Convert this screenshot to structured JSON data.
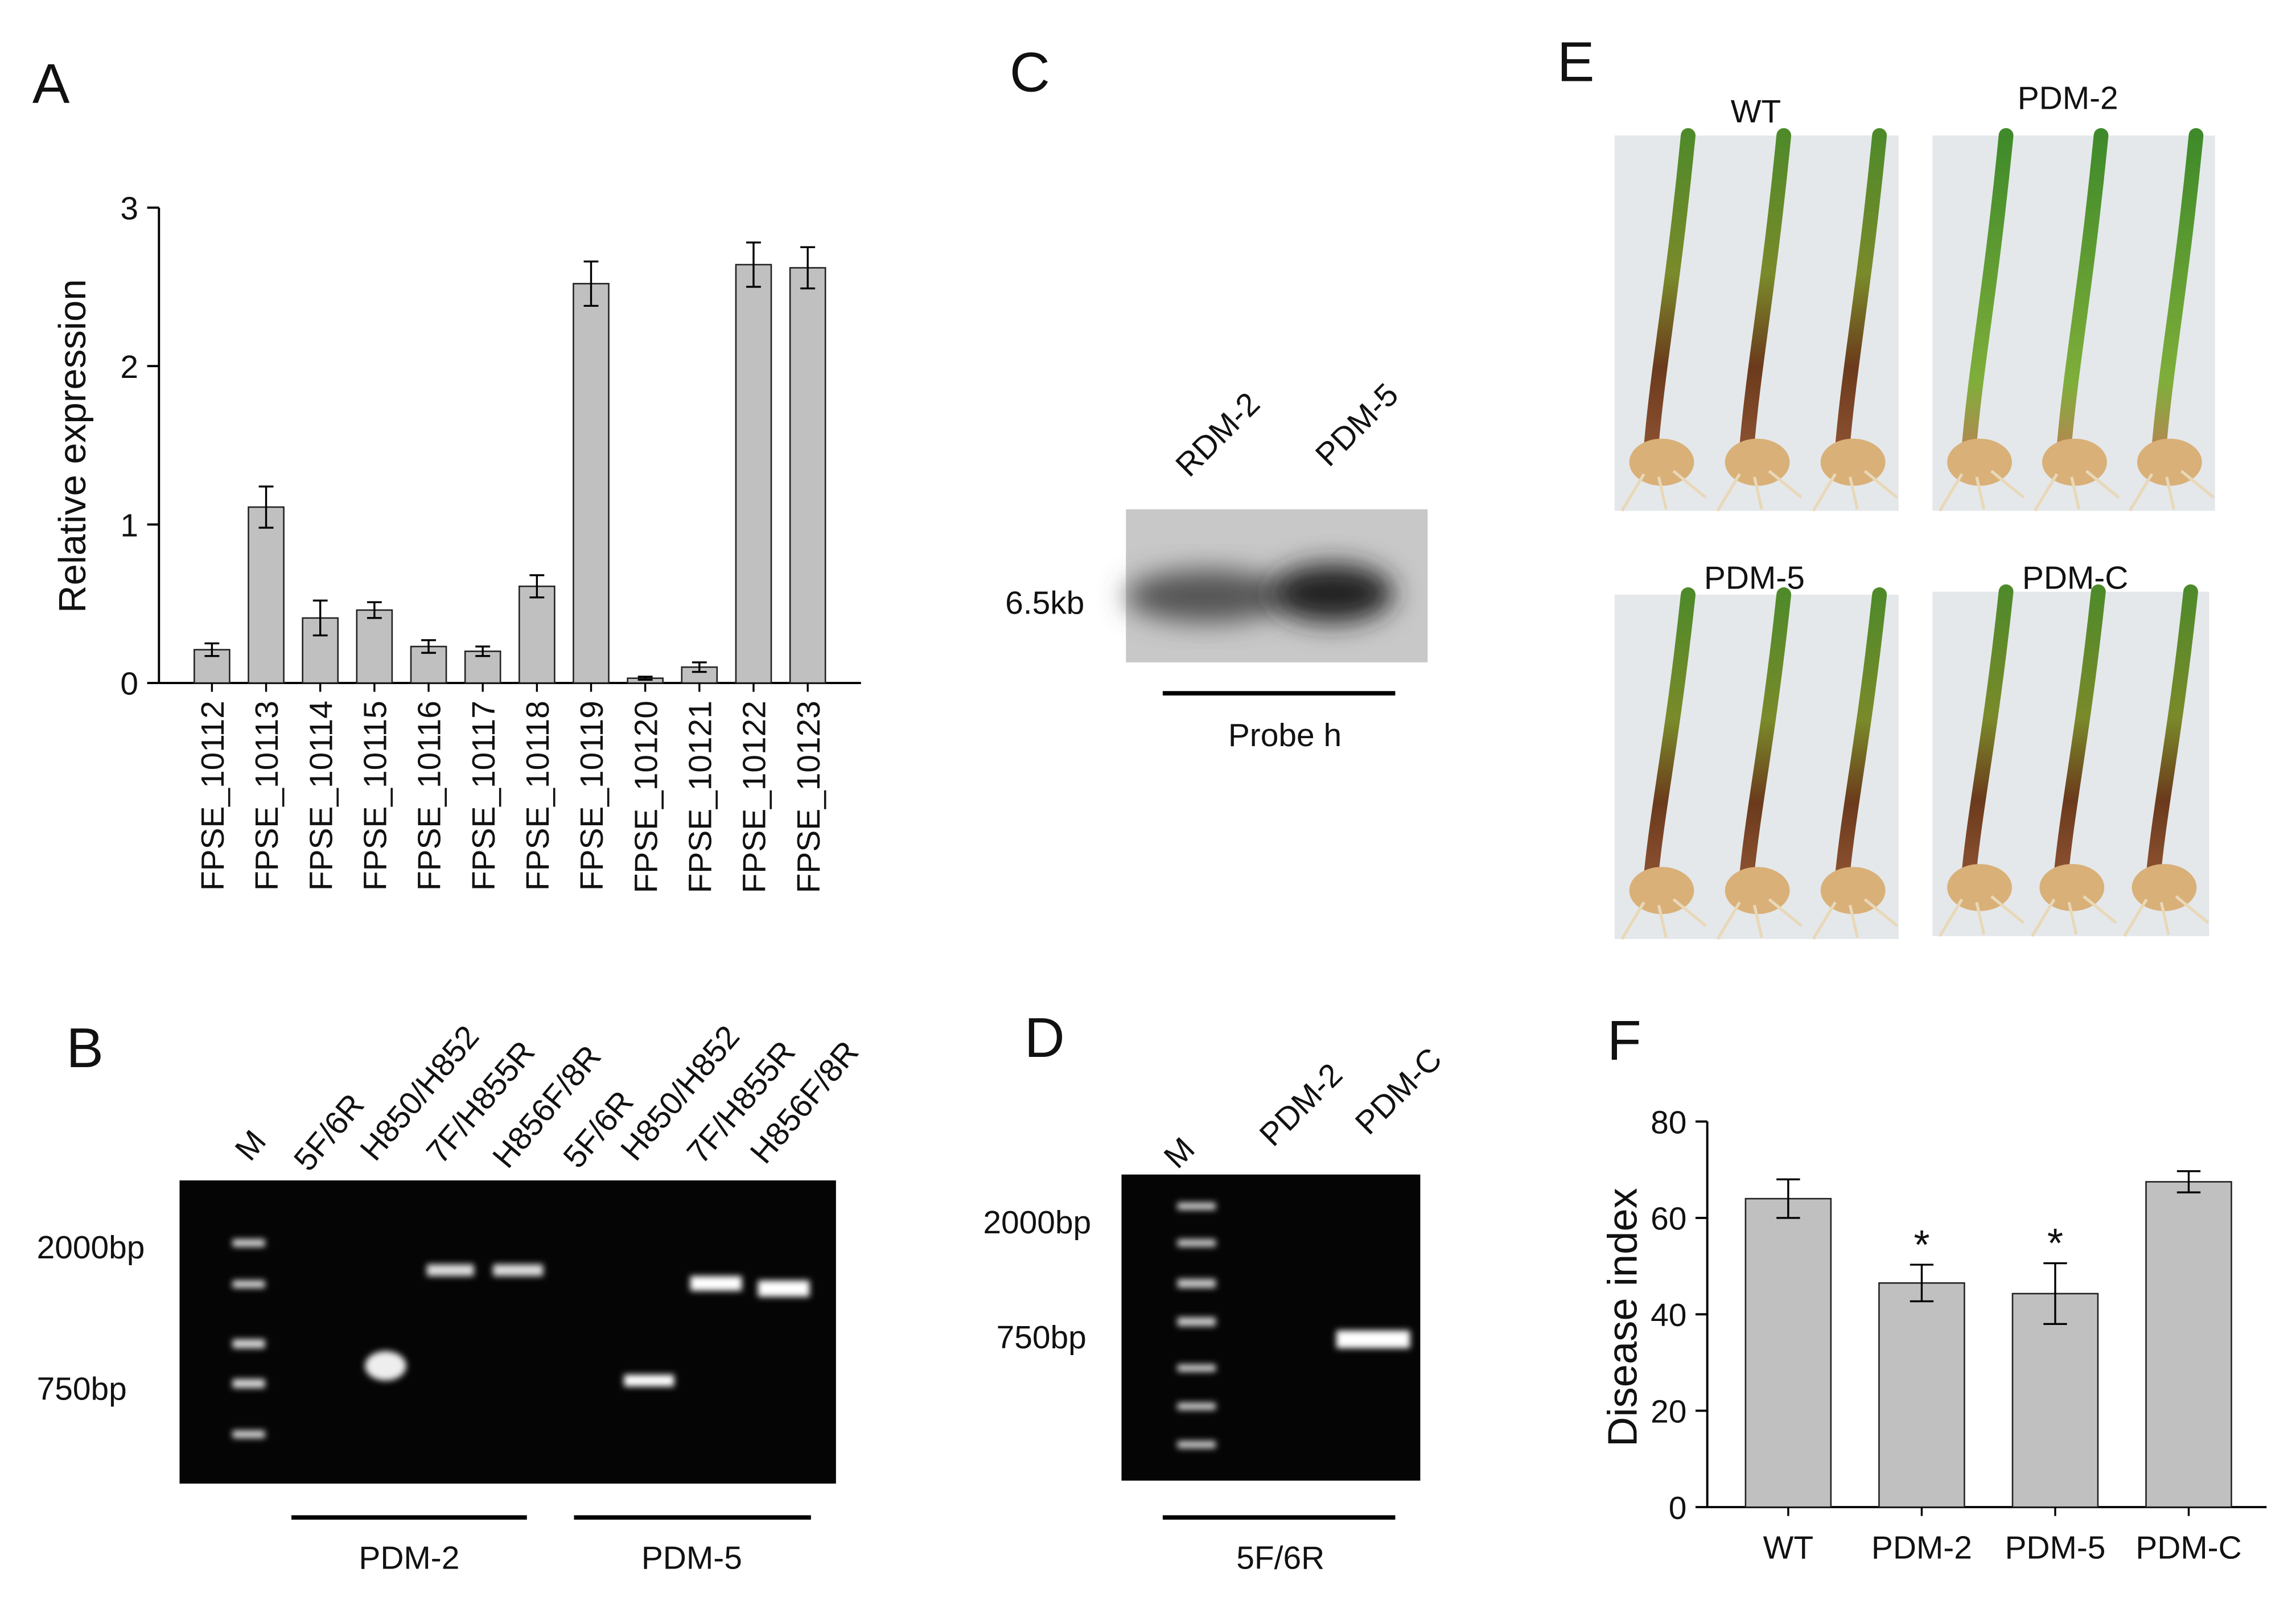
{
  "panel_labels": [
    "A",
    "B",
    "C",
    "D",
    "E",
    "F"
  ],
  "chart_data": [
    {
      "type": "bar",
      "y_label": "Relative expression",
      "categories": [
        "FPSE_10112",
        "FPSE_10113",
        "FPSE_10114",
        "FPSE_10115",
        "FPSE_10116",
        "FPSE_10117",
        "FPSE_10118",
        "FPSE_10119",
        "FPSE_10120",
        "FPSE_10121",
        "FPSE_10122",
        "FPSE_10123"
      ],
      "values": [
        0.21,
        1.11,
        0.41,
        0.46,
        0.23,
        0.2,
        0.61,
        2.52,
        0.03,
        0.1,
        2.64,
        2.62
      ],
      "errors": [
        0.04,
        0.13,
        0.11,
        0.05,
        0.04,
        0.03,
        0.07,
        0.14,
        0.01,
        0.03,
        0.14,
        0.13
      ],
      "color": "#c0c0c0",
      "ylim": [
        0,
        3
      ],
      "yticks": [
        0,
        1,
        2,
        3
      ]
    },
    {
      "type": "bar",
      "y_label": "Disease index",
      "categories": [
        "WT",
        "PDM-2",
        "PDM-5",
        "PDM-C"
      ],
      "values": [
        64,
        46.5,
        44.3,
        67.5
      ],
      "errors": [
        4,
        3.8,
        6.3,
        2.2
      ],
      "value_annotations": [
        null,
        "*",
        "*",
        null
      ],
      "color": "#c0c0c0",
      "ylim": [
        0,
        80
      ],
      "yticks": [
        0,
        20,
        40,
        60,
        80
      ]
    }
  ],
  "gel_b": {
    "lanes": [
      "M",
      "5F/6R",
      "H850/H852",
      "7F/H855R",
      "H856F/8R",
      "5F/6R",
      "H850/H852",
      "7F/H855R",
      "H856F/8R"
    ],
    "sizes": [
      "2000bp",
      "750bp"
    ],
    "groups": [
      "PDM-2",
      "PDM-5"
    ]
  },
  "blot_c": {
    "lanes": [
      "RDM-2",
      "PDM-5"
    ],
    "size": "6.5kb",
    "probe": "Probe h"
  },
  "gel_d": {
    "lanes": [
      "M",
      "PDM-2",
      "PDM-C"
    ],
    "sizes": [
      "2000bp",
      "750bp"
    ],
    "primer": "5F/6R"
  },
  "photos_e": {
    "titles": [
      "WT",
      "PDM-2",
      "PDM-5",
      "PDM-C"
    ]
  }
}
